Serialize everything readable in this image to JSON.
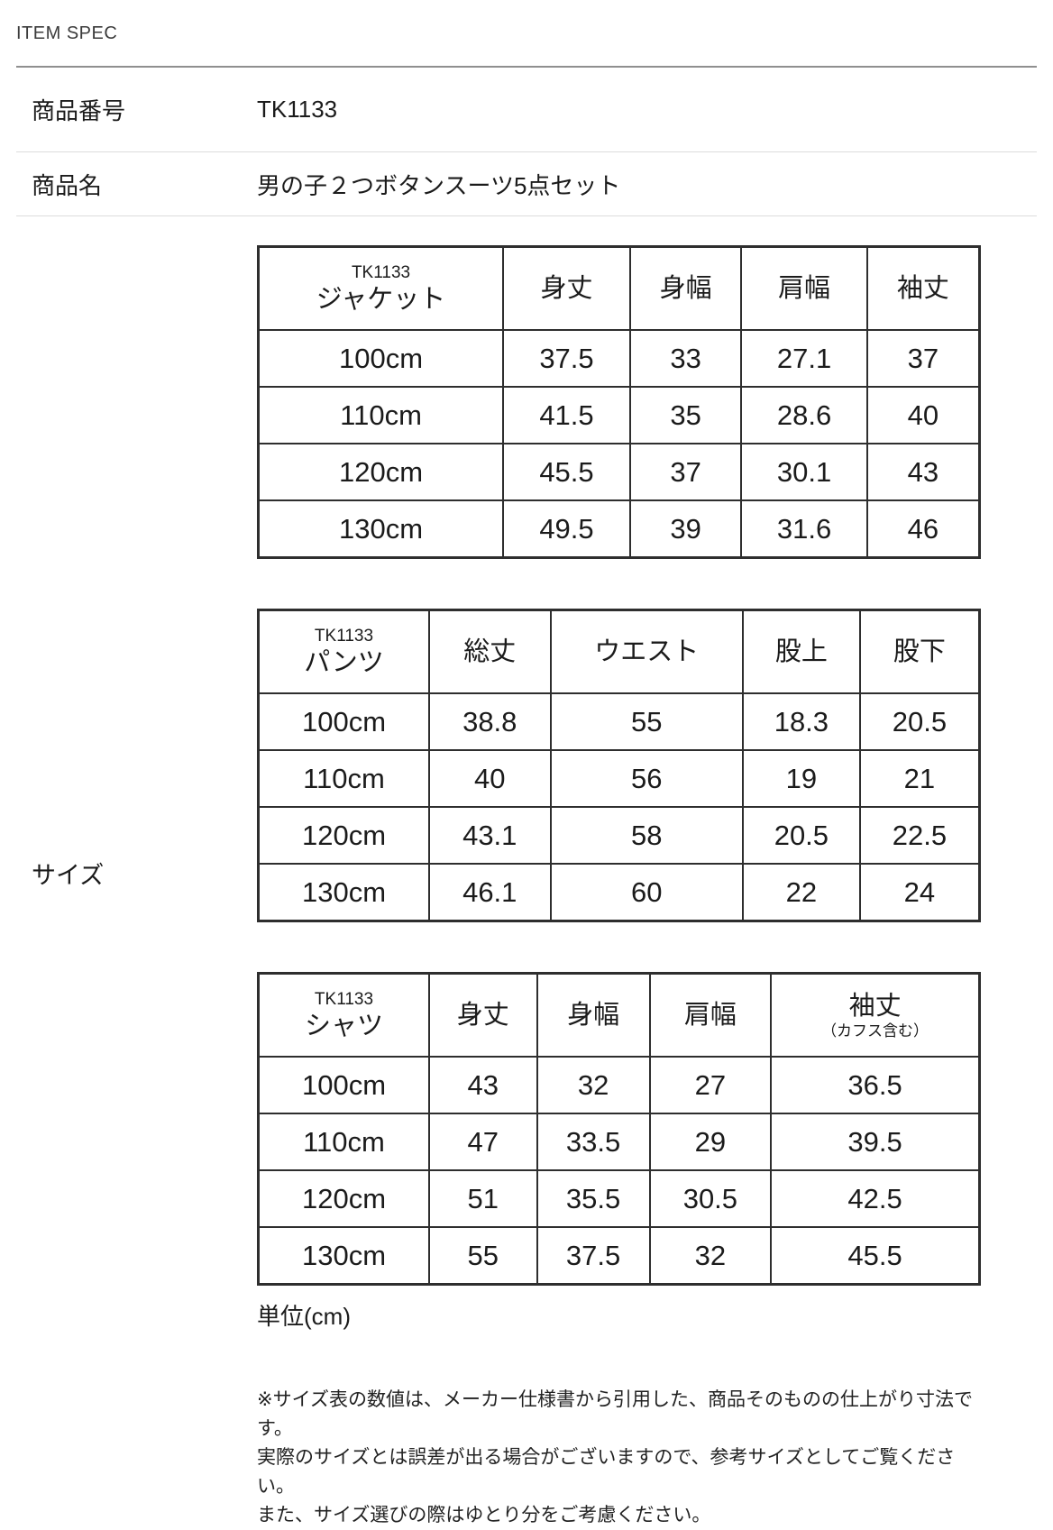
{
  "page": {
    "title": "ITEM SPEC",
    "size_label": "サイズ",
    "unit_label": "単位(cm)",
    "notes": [
      "※サイズ表の数値は、メーカー仕様書から引用した、商品そのものの仕上がり寸法です。",
      "実際のサイズとは誤差が出る場合がございますので、参考サイズとしてご覧ください。",
      "また、サイズ選びの際はゆとり分をご考慮ください。"
    ]
  },
  "spec_rows": [
    {
      "label": "商品番号",
      "value": "TK1133"
    },
    {
      "label": "商品名",
      "value": "男の子２つボタンスーツ5点セット"
    }
  ],
  "tables": [
    {
      "key": "jacket",
      "code": "TK1133",
      "name": "ジャケット",
      "columns": [
        "身丈",
        "身幅",
        "肩幅",
        "袖丈"
      ],
      "column_subs": [
        null,
        null,
        null,
        null
      ],
      "rows": [
        {
          "size": "100cm",
          "values": [
            "37.5",
            "33",
            "27.1",
            "37"
          ]
        },
        {
          "size": "110cm",
          "values": [
            "41.5",
            "35",
            "28.6",
            "40"
          ]
        },
        {
          "size": "120cm",
          "values": [
            "45.5",
            "37",
            "30.1",
            "43"
          ]
        },
        {
          "size": "130cm",
          "values": [
            "49.5",
            "39",
            "31.6",
            "46"
          ]
        }
      ]
    },
    {
      "key": "pants",
      "code": "TK1133",
      "name": "パンツ",
      "columns": [
        "総丈",
        "ウエスト",
        "股上",
        "股下"
      ],
      "column_subs": [
        null,
        null,
        null,
        null
      ],
      "rows": [
        {
          "size": "100cm",
          "values": [
            "38.8",
            "55",
            "18.3",
            "20.5"
          ]
        },
        {
          "size": "110cm",
          "values": [
            "40",
            "56",
            "19",
            "21"
          ]
        },
        {
          "size": "120cm",
          "values": [
            "43.1",
            "58",
            "20.5",
            "22.5"
          ]
        },
        {
          "size": "130cm",
          "values": [
            "46.1",
            "60",
            "22",
            "24"
          ]
        }
      ]
    },
    {
      "key": "shirt",
      "code": "TK1133",
      "name": "シャツ",
      "columns": [
        "身丈",
        "身幅",
        "肩幅",
        "袖丈"
      ],
      "column_subs": [
        null,
        null,
        null,
        "（カフス含む）"
      ],
      "rows": [
        {
          "size": "100cm",
          "values": [
            "43",
            "32",
            "27",
            "36.5"
          ]
        },
        {
          "size": "110cm",
          "values": [
            "47",
            "33.5",
            "29",
            "39.5"
          ]
        },
        {
          "size": "120cm",
          "values": [
            "51",
            "35.5",
            "30.5",
            "42.5"
          ]
        },
        {
          "size": "130cm",
          "values": [
            "55",
            "37.5",
            "32",
            "45.5"
          ]
        }
      ]
    }
  ]
}
